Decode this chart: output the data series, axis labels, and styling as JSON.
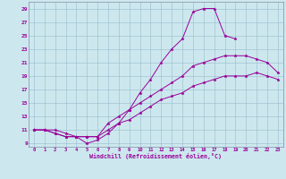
{
  "xlabel": "Windchill (Refroidissement éolien,°C)",
  "bg_color": "#cce8ee",
  "line_color": "#990099",
  "grid_color": "#99bbcc",
  "spine_color": "#8888aa",
  "xlim": [
    -0.5,
    23.5
  ],
  "ylim": [
    8.5,
    30
  ],
  "xticks": [
    0,
    1,
    2,
    3,
    4,
    5,
    6,
    7,
    8,
    9,
    10,
    11,
    12,
    13,
    14,
    15,
    16,
    17,
    18,
    19,
    20,
    21,
    22,
    23
  ],
  "yticks": [
    9,
    11,
    13,
    15,
    17,
    19,
    21,
    23,
    25,
    27,
    29
  ],
  "line1_x": [
    0,
    1,
    2,
    3,
    4,
    5,
    6,
    7,
    8,
    9,
    10,
    11,
    12,
    13,
    14,
    15,
    16,
    17,
    18,
    19,
    20,
    21,
    22,
    23
  ],
  "line1_y": [
    11,
    11,
    11,
    10.5,
    10,
    9,
    9.5,
    10.5,
    12,
    14,
    16.5,
    18.5,
    21,
    23,
    24.5,
    28.5,
    29,
    29,
    25,
    24.5,
    null,
    null,
    null,
    null
  ],
  "line2_x": [
    0,
    1,
    2,
    3,
    4,
    5,
    6,
    7,
    8,
    9,
    10,
    11,
    12,
    13,
    14,
    15,
    16,
    17,
    18,
    19,
    20,
    21,
    22,
    23
  ],
  "line2_y": [
    11,
    11,
    10.5,
    10,
    10,
    10,
    10,
    12,
    13,
    14,
    15,
    16,
    17,
    18,
    19,
    20.5,
    21,
    21.5,
    22,
    22,
    22,
    21.5,
    21,
    19.5
  ],
  "line3_x": [
    0,
    1,
    2,
    3,
    4,
    5,
    6,
    7,
    8,
    9,
    10,
    11,
    12,
    13,
    14,
    15,
    16,
    17,
    18,
    19,
    20,
    21,
    22,
    23
  ],
  "line3_y": [
    11,
    11,
    10.5,
    10,
    10,
    10,
    10,
    11,
    12,
    12.5,
    13.5,
    14.5,
    15.5,
    16,
    16.5,
    17.5,
    18,
    18.5,
    19,
    19,
    19,
    19.5,
    19,
    18.5
  ]
}
